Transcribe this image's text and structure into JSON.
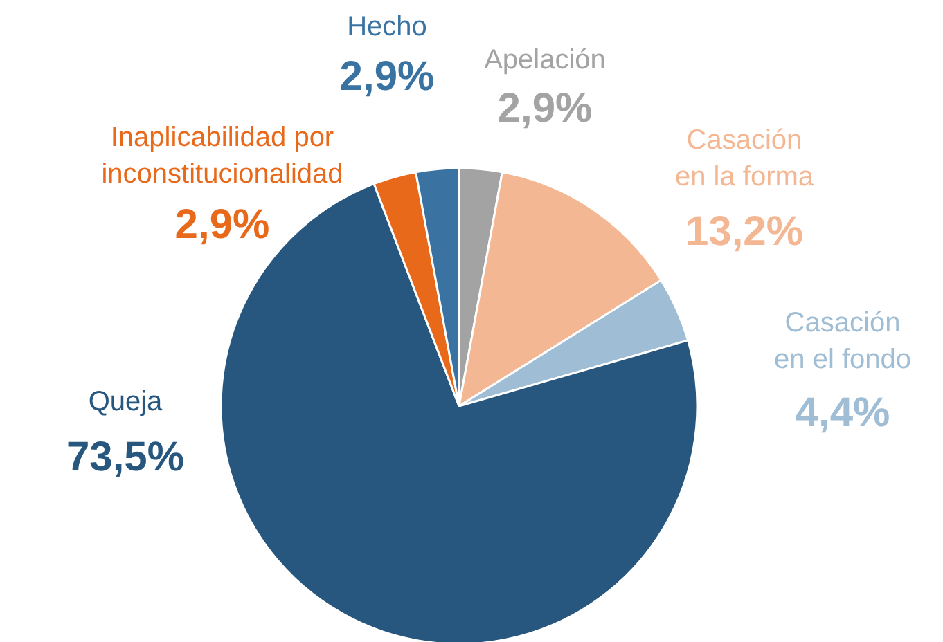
{
  "chart_data": {
    "type": "pie",
    "categories": [
      "Apelación",
      "Casación\nen la forma",
      "Casación\nen el fondo",
      "Queja",
      "Inaplicabilidad por\ninconstitucionalidad",
      "Hecho"
    ],
    "values": [
      2.9,
      13.2,
      4.4,
      73.5,
      2.9,
      2.9
    ],
    "colors": [
      "#a3a3a3",
      "#f4b793",
      "#9fbdd4",
      "#27577e",
      "#e9691b",
      "#3a73a2"
    ],
    "value_labels": [
      "2,9%",
      "13,2%",
      "4,4%",
      "73,5%",
      "2,9%",
      "2,9%"
    ]
  }
}
